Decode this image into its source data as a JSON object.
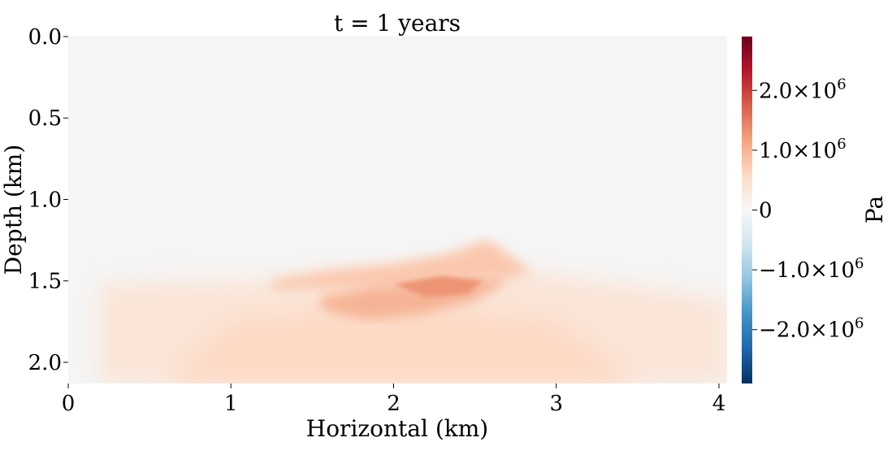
{
  "chart_data": {
    "type": "heatmap",
    "title": "t = 1 years",
    "xlabel": "Horizontal (km)",
    "ylabel": "Depth (km)",
    "xlim": [
      0,
      4.05
    ],
    "ylim": [
      0.0,
      2.13
    ],
    "y_inverted": true,
    "x_ticks": [
      0,
      1,
      2,
      3,
      4
    ],
    "x_tick_labels": [
      "0",
      "1",
      "2",
      "3",
      "4"
    ],
    "y_ticks": [
      0.0,
      0.5,
      1.0,
      1.5,
      2.0
    ],
    "y_tick_labels": [
      "0.0",
      "0.5",
      "1.0",
      "1.5",
      "2.0"
    ],
    "colorbar": {
      "label": "Pa",
      "colormap": "RdBu_r",
      "range": [
        -2900000,
        2900000
      ],
      "ticks": [
        2000000,
        1000000,
        0,
        -1000000,
        -2000000
      ],
      "tick_labels": [
        {
          "mantissa": "2.0×10",
          "exp": "6"
        },
        {
          "mantissa": "1.0×10",
          "exp": "6"
        },
        {
          "mantissa": "0",
          "exp": ""
        },
        {
          "mantissa": "−1.0×10",
          "exp": "6"
        },
        {
          "mantissa": "−2.0×10",
          "exp": "6"
        }
      ],
      "colors": [
        "#053061",
        "#2166ac",
        "#4393c3",
        "#92c5de",
        "#d1e5f0",
        "#f7f7f7",
        "#fddbc7",
        "#f4a582",
        "#d6604d",
        "#b2182b",
        "#67001f"
      ]
    },
    "background_color": "#f5f5f5",
    "field_summary": "Zero pressure above ~1.3-1.5 km depth; positive pressure (~0.5-1.5×10^6 Pa) below, peaking around x=2.3 km, depth 1.5-1.6 km.",
    "regions": [
      {
        "name": "lower-band",
        "value": 400000,
        "polygon": [
          [
            0.2,
            1.52
          ],
          [
            1.2,
            1.5
          ],
          [
            1.6,
            1.44
          ],
          [
            2.6,
            1.4
          ],
          [
            2.85,
            1.45
          ],
          [
            3.6,
            1.55
          ],
          [
            4.05,
            1.62
          ],
          [
            4.05,
            2.13
          ],
          [
            0.2,
            2.13
          ]
        ]
      },
      {
        "name": "deep-core",
        "value": 600000,
        "polygon": [
          [
            1.0,
            1.75
          ],
          [
            2.0,
            1.65
          ],
          [
            3.0,
            1.75
          ],
          [
            3.5,
            2.13
          ],
          [
            0.6,
            2.13
          ]
        ]
      },
      {
        "name": "upper-lens",
        "value": 800000,
        "polygon": [
          [
            1.25,
            1.5
          ],
          [
            1.6,
            1.44
          ],
          [
            2.0,
            1.4
          ],
          [
            2.35,
            1.33
          ],
          [
            2.56,
            1.25
          ],
          [
            2.62,
            1.27
          ],
          [
            2.85,
            1.45
          ],
          [
            2.7,
            1.48
          ],
          [
            2.35,
            1.52
          ],
          [
            1.9,
            1.53
          ],
          [
            1.25,
            1.55
          ]
        ]
      },
      {
        "name": "lower-lens",
        "value": 1000000,
        "polygon": [
          [
            1.55,
            1.6
          ],
          [
            1.9,
            1.53
          ],
          [
            2.35,
            1.52
          ],
          [
            2.6,
            1.49
          ],
          [
            2.7,
            1.5
          ],
          [
            2.5,
            1.62
          ],
          [
            2.2,
            1.7
          ],
          [
            1.85,
            1.74
          ],
          [
            1.65,
            1.7
          ],
          [
            1.55,
            1.66
          ]
        ]
      },
      {
        "name": "peak",
        "value": 1300000,
        "polygon": [
          [
            2.0,
            1.52
          ],
          [
            2.3,
            1.47
          ],
          [
            2.55,
            1.5
          ],
          [
            2.45,
            1.58
          ],
          [
            2.2,
            1.6
          ]
        ]
      }
    ]
  }
}
